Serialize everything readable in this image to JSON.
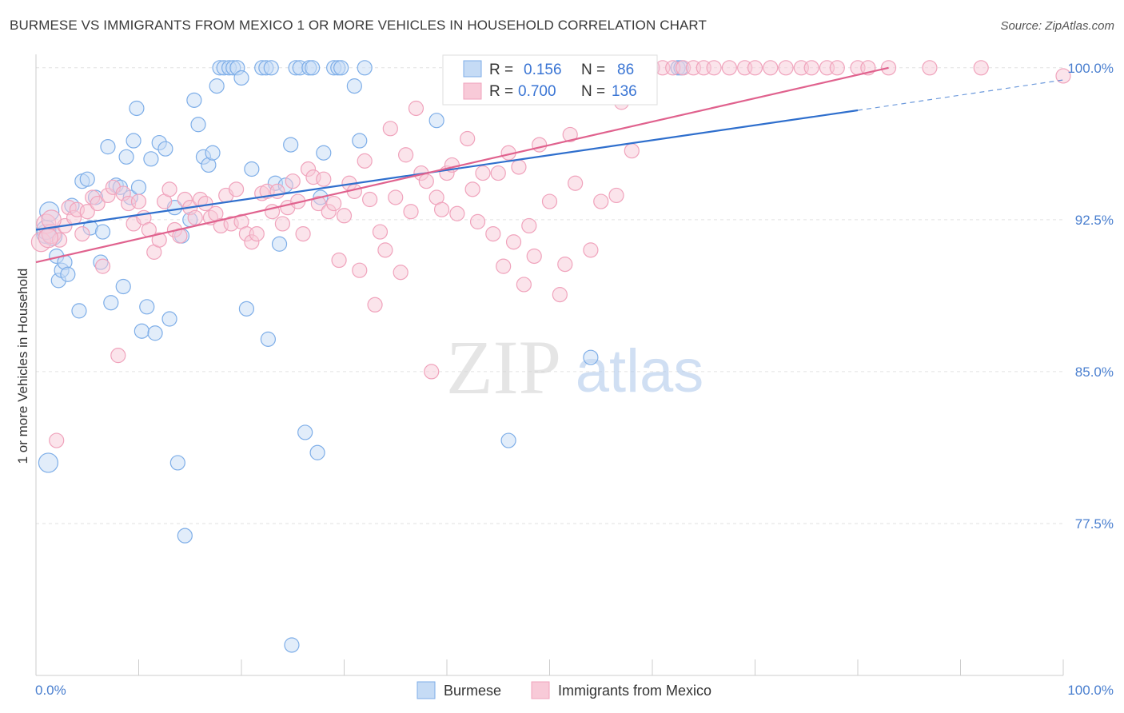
{
  "header": {
    "title": "BURMESE VS IMMIGRANTS FROM MEXICO 1 OR MORE VEHICLES IN HOUSEHOLD CORRELATION CHART",
    "source": "Source: ZipAtlas.com"
  },
  "watermark": {
    "zip": "ZIP",
    "atlas": "atlas"
  },
  "chart_data": {
    "type": "scatter",
    "title": "BURMESE VS IMMIGRANTS FROM MEXICO 1 OR MORE VEHICLES IN HOUSEHOLD CORRELATION CHART",
    "xlabel": "",
    "ylabel": "1 or more Vehicles in Household",
    "xlim": [
      0,
      100
    ],
    "ylim": [
      70,
      100.9
    ],
    "x_tick_labels": {
      "left": "0.0%",
      "right": "100.0%"
    },
    "y_ticks": [
      {
        "value": 100.0,
        "label": "100.0%"
      },
      {
        "value": 92.5,
        "label": "92.5%"
      },
      {
        "value": 85.0,
        "label": "85.0%"
      },
      {
        "value": 77.5,
        "label": "77.5%"
      }
    ],
    "grid": true,
    "legend_position": "top-center",
    "series": [
      {
        "name": "Burmese",
        "R": "0.156",
        "N": "86",
        "color": "#7eaee8",
        "fill": "#c5dbf5",
        "line_color": "#2f6fcd",
        "trend": {
          "x0": 0,
          "y0": 92.0,
          "x1": 80,
          "y1": 97.9,
          "dash_x1": 100,
          "dash_y1": 99.4
        },
        "points": [
          [
            1.0,
            91.8
          ],
          [
            1.3,
            92.9
          ],
          [
            1.6,
            91.7
          ],
          [
            2.0,
            90.7
          ],
          [
            2.2,
            89.5
          ],
          [
            2.5,
            90.0
          ],
          [
            2.8,
            90.4
          ],
          [
            3.1,
            89.8
          ],
          [
            3.5,
            93.2
          ],
          [
            4.2,
            88.0
          ],
          [
            4.5,
            94.4
          ],
          [
            5.0,
            94.5
          ],
          [
            5.3,
            92.1
          ],
          [
            5.8,
            93.6
          ],
          [
            6.3,
            90.4
          ],
          [
            6.5,
            91.9
          ],
          [
            7.0,
            96.1
          ],
          [
            7.3,
            88.4
          ],
          [
            7.8,
            94.2
          ],
          [
            8.2,
            94.1
          ],
          [
            8.5,
            89.2
          ],
          [
            8.8,
            95.6
          ],
          [
            9.2,
            93.6
          ],
          [
            9.5,
            96.4
          ],
          [
            10.0,
            94.1
          ],
          [
            10.3,
            87.0
          ],
          [
            10.8,
            88.2
          ],
          [
            11.2,
            95.5
          ],
          [
            11.6,
            86.9
          ],
          [
            12.0,
            96.3
          ],
          [
            12.6,
            96.0
          ],
          [
            13.0,
            87.6
          ],
          [
            13.5,
            93.1
          ],
          [
            13.8,
            80.5
          ],
          [
            14.2,
            91.7
          ],
          [
            14.5,
            76.9
          ],
          [
            15.0,
            92.5
          ],
          [
            15.4,
            98.4
          ],
          [
            15.8,
            97.2
          ],
          [
            16.3,
            95.6
          ],
          [
            16.8,
            95.2
          ],
          [
            17.2,
            95.8
          ],
          [
            17.6,
            99.1
          ],
          [
            17.9,
            100.0
          ],
          [
            18.3,
            100.0
          ],
          [
            18.8,
            100.0
          ],
          [
            19.2,
            100.0
          ],
          [
            19.6,
            100.0
          ],
          [
            20.0,
            99.5
          ],
          [
            20.5,
            88.1
          ],
          [
            21.0,
            95.0
          ],
          [
            22.0,
            100.0
          ],
          [
            22.4,
            100.0
          ],
          [
            22.9,
            100.0
          ],
          [
            22.6,
            86.6
          ],
          [
            23.3,
            94.3
          ],
          [
            23.7,
            91.3
          ],
          [
            24.3,
            94.2
          ],
          [
            24.8,
            96.2
          ],
          [
            24.9,
            71.5
          ],
          [
            25.3,
            100.0
          ],
          [
            25.7,
            100.0
          ],
          [
            26.2,
            82.0
          ],
          [
            26.6,
            100.0
          ],
          [
            26.9,
            100.0
          ],
          [
            27.4,
            81.0
          ],
          [
            27.7,
            93.6
          ],
          [
            28.0,
            95.8
          ],
          [
            29.0,
            100.0
          ],
          [
            29.4,
            100.0
          ],
          [
            29.7,
            100.0
          ],
          [
            31.0,
            99.1
          ],
          [
            31.5,
            96.4
          ],
          [
            32.0,
            100.0
          ],
          [
            39.0,
            97.4
          ],
          [
            42.0,
            100.0
          ],
          [
            46.0,
            81.6
          ],
          [
            54.0,
            85.7
          ],
          [
            60.0,
            100.0
          ],
          [
            62.5,
            100.0
          ],
          [
            62.8,
            100.0
          ],
          [
            1.2,
            80.5
          ],
          [
            9.8,
            98.0
          ],
          [
            1.0,
            92.0
          ]
        ]
      },
      {
        "name": "Immigrants from Mexico",
        "R": "0.700",
        "N": "136",
        "color": "#f0a3bc",
        "fill": "#f8cad8",
        "line_color": "#e0628e",
        "trend": {
          "x0": 0,
          "y0": 90.4,
          "x1": 83,
          "y1": 100.0
        },
        "points": [
          [
            0.5,
            91.4
          ],
          [
            1.0,
            92.3
          ],
          [
            1.5,
            91.8
          ],
          [
            2.0,
            81.6
          ],
          [
            2.3,
            91.5
          ],
          [
            2.8,
            92.2
          ],
          [
            3.2,
            93.1
          ],
          [
            3.7,
            92.6
          ],
          [
            4.0,
            93.0
          ],
          [
            4.5,
            91.8
          ],
          [
            5.0,
            92.9
          ],
          [
            5.5,
            93.6
          ],
          [
            6.0,
            93.3
          ],
          [
            6.5,
            90.2
          ],
          [
            7.0,
            93.7
          ],
          [
            7.5,
            94.1
          ],
          [
            8.0,
            85.8
          ],
          [
            8.5,
            93.8
          ],
          [
            9.0,
            93.3
          ],
          [
            9.5,
            92.3
          ],
          [
            10.0,
            93.4
          ],
          [
            10.5,
            92.6
          ],
          [
            11.0,
            92.0
          ],
          [
            11.5,
            90.9
          ],
          [
            12.0,
            91.5
          ],
          [
            12.5,
            93.4
          ],
          [
            13.0,
            94.0
          ],
          [
            13.5,
            92.0
          ],
          [
            14.0,
            91.7
          ],
          [
            14.5,
            93.5
          ],
          [
            15.0,
            93.1
          ],
          [
            15.5,
            92.6
          ],
          [
            16.0,
            93.5
          ],
          [
            16.5,
            93.3
          ],
          [
            17.0,
            92.6
          ],
          [
            17.5,
            92.8
          ],
          [
            18.0,
            92.2
          ],
          [
            18.5,
            93.7
          ],
          [
            19.0,
            92.3
          ],
          [
            19.5,
            94.0
          ],
          [
            20.0,
            92.4
          ],
          [
            20.5,
            91.8
          ],
          [
            21.0,
            91.4
          ],
          [
            21.5,
            91.8
          ],
          [
            22.0,
            93.8
          ],
          [
            22.5,
            93.9
          ],
          [
            23.0,
            92.9
          ],
          [
            23.5,
            93.9
          ],
          [
            24.0,
            92.3
          ],
          [
            24.5,
            93.1
          ],
          [
            25.0,
            94.4
          ],
          [
            25.5,
            93.4
          ],
          [
            26.0,
            91.8
          ],
          [
            26.5,
            95.0
          ],
          [
            27.0,
            94.6
          ],
          [
            27.5,
            93.3
          ],
          [
            28.0,
            94.5
          ],
          [
            28.5,
            92.9
          ],
          [
            29.0,
            93.3
          ],
          [
            29.5,
            90.5
          ],
          [
            30.0,
            92.7
          ],
          [
            30.5,
            94.3
          ],
          [
            31.0,
            93.9
          ],
          [
            31.5,
            90.0
          ],
          [
            32.0,
            95.4
          ],
          [
            32.5,
            93.5
          ],
          [
            33.0,
            88.3
          ],
          [
            33.5,
            91.9
          ],
          [
            34.0,
            91.0
          ],
          [
            34.5,
            97.0
          ],
          [
            35.0,
            93.6
          ],
          [
            35.5,
            89.9
          ],
          [
            36.0,
            95.7
          ],
          [
            36.5,
            92.9
          ],
          [
            37.0,
            98.0
          ],
          [
            37.5,
            94.8
          ],
          [
            38.0,
            94.4
          ],
          [
            38.5,
            85.0
          ],
          [
            39.0,
            93.6
          ],
          [
            39.5,
            93.0
          ],
          [
            40.0,
            94.8
          ],
          [
            40.5,
            95.2
          ],
          [
            41.0,
            92.8
          ],
          [
            42.0,
            96.5
          ],
          [
            42.5,
            94.0
          ],
          [
            43.0,
            92.4
          ],
          [
            43.5,
            94.8
          ],
          [
            44.0,
            100.0
          ],
          [
            44.5,
            91.8
          ],
          [
            45.0,
            94.8
          ],
          [
            45.5,
            90.2
          ],
          [
            46.0,
            95.8
          ],
          [
            46.5,
            91.4
          ],
          [
            47.0,
            95.1
          ],
          [
            47.5,
            89.3
          ],
          [
            48.0,
            92.2
          ],
          [
            48.5,
            90.7
          ],
          [
            49.0,
            96.2
          ],
          [
            50.0,
            93.4
          ],
          [
            51.0,
            88.8
          ],
          [
            51.5,
            90.3
          ],
          [
            52.0,
            96.7
          ],
          [
            52.5,
            94.3
          ],
          [
            53.0,
            100.0
          ],
          [
            54.0,
            91.0
          ],
          [
            55.0,
            93.4
          ],
          [
            56.0,
            100.0
          ],
          [
            56.5,
            93.7
          ],
          [
            57.0,
            98.3
          ],
          [
            58.0,
            95.9
          ],
          [
            58.5,
            100.0
          ],
          [
            59.0,
            100.0
          ],
          [
            60.0,
            100.0
          ],
          [
            61.0,
            100.0
          ],
          [
            62.0,
            100.0
          ],
          [
            63.0,
            100.0
          ],
          [
            64.0,
            100.0
          ],
          [
            65.0,
            100.0
          ],
          [
            66.0,
            100.0
          ],
          [
            67.5,
            100.0
          ],
          [
            69.0,
            100.0
          ],
          [
            70.0,
            100.0
          ],
          [
            71.5,
            100.0
          ],
          [
            73.0,
            100.0
          ],
          [
            74.5,
            100.0
          ],
          [
            75.5,
            100.0
          ],
          [
            77.0,
            100.0
          ],
          [
            78.0,
            100.0
          ],
          [
            80.0,
            100.0
          ],
          [
            81.0,
            100.0
          ],
          [
            83.0,
            100.0
          ],
          [
            87.0,
            100.0
          ],
          [
            92.0,
            100.0
          ],
          [
            100.0,
            99.6
          ],
          [
            1.2,
            91.6
          ],
          [
            1.5,
            92.5
          ]
        ]
      }
    ]
  }
}
